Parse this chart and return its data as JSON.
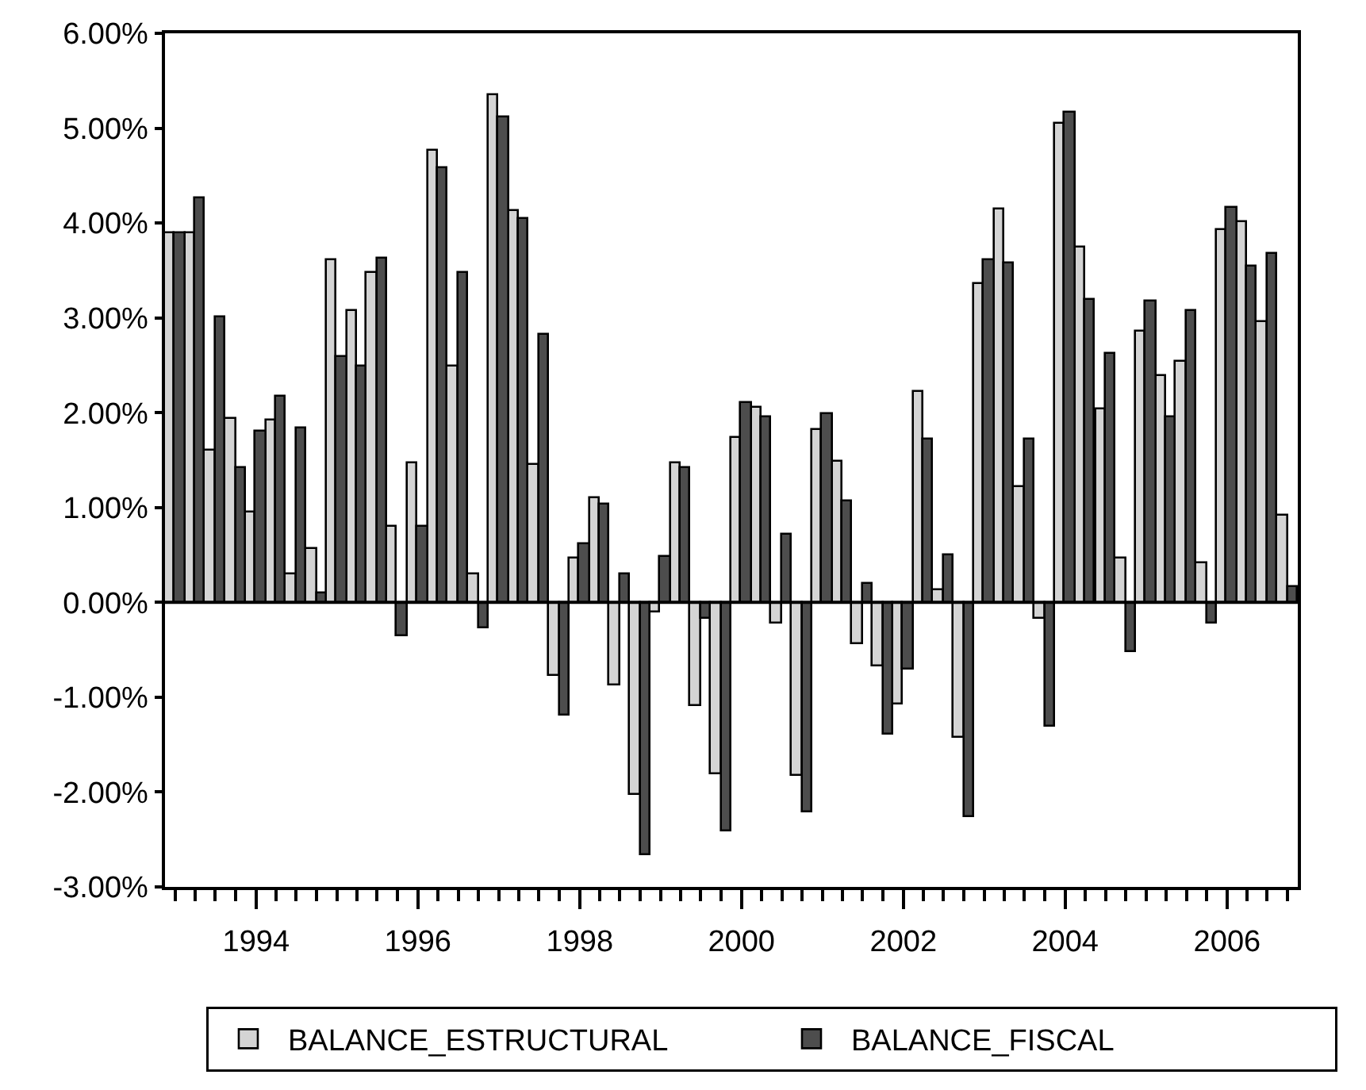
{
  "chart_data": {
    "type": "bar",
    "x": [
      "1993-01",
      "1993-04",
      "1993-07",
      "1993-10",
      "1994-01",
      "1994-04",
      "1994-07",
      "1994-10",
      "1995-01",
      "1995-04",
      "1995-07",
      "1995-10",
      "1996-01",
      "1996-04",
      "1996-07",
      "1996-10",
      "1997-01",
      "1997-04",
      "1997-07",
      "1997-10",
      "1998-01",
      "1998-04",
      "1998-07",
      "1998-10",
      "1999-01",
      "1999-04",
      "1999-07",
      "1999-10",
      "2000-01",
      "2000-04",
      "2000-07",
      "2000-10",
      "2001-01",
      "2001-04",
      "2001-07",
      "2001-10",
      "2002-01",
      "2002-04",
      "2002-07",
      "2002-10",
      "2003-01",
      "2003-04",
      "2003-07",
      "2003-10",
      "2004-01",
      "2004-04",
      "2004-07",
      "2004-10",
      "2005-01",
      "2005-04",
      "2005-07",
      "2005-10",
      "2006-01",
      "2006-04",
      "2006-07",
      "2006-10"
    ],
    "series": [
      {
        "name": "BALANCE_ESTRUCTURAL",
        "color": "#d4d4d4",
        "values": [
          3.9,
          3.9,
          1.6,
          1.94,
          0.94,
          1.92,
          0.3,
          0.56,
          3.6,
          3.08,
          3.47,
          0.79,
          1.47,
          4.76,
          2.48,
          0.29,
          5.35,
          4.12,
          1.45,
          -0.78,
          0.46,
          1.1,
          -0.88,
          -2.03,
          -0.11,
          1.47,
          -1.09,
          -1.81,
          1.74,
          2.05,
          -0.22,
          -1.83,
          1.81,
          1.49,
          -0.44,
          -0.68,
          -1.07,
          2.22,
          0.12,
          -1.42,
          3.35,
          4.15,
          1.22,
          -0.18,
          5.05,
          3.74,
          2.04,
          0.47,
          2.85,
          2.38,
          2.53,
          0.42,
          3.92,
          4.01,
          2.95,
          0.92
        ]
      },
      {
        "name": "BALANCE_FISCAL",
        "color": "#4d4d4d",
        "values": [
          3.9,
          4.26,
          3.01,
          1.42,
          1.8,
          2.17,
          1.83,
          0.1,
          2.58,
          2.49,
          3.62,
          -0.36,
          0.79,
          4.57,
          3.47,
          -0.27,
          5.11,
          4.05,
          2.82,
          -1.2,
          0.62,
          1.04,
          0.3,
          -2.66,
          0.48,
          1.42,
          -0.18,
          -2.42,
          2.1,
          1.96,
          0.72,
          -2.22,
          1.99,
          1.06,
          0.2,
          -1.4,
          -0.71,
          1.72,
          0.49,
          -2.27,
          3.6,
          3.58,
          1.72,
          -1.31,
          5.17,
          3.19,
          2.62,
          -0.52,
          3.17,
          1.96,
          3.08,
          -0.23,
          4.16,
          3.54,
          3.67,
          0.16
        ]
      }
    ],
    "xlim": [
      "1992-11-16",
      "2006-11-16"
    ],
    "ref_lines": [
      {
        "axis": "y",
        "value": 0,
        "color": "#000000"
      }
    ],
    "xticks": [
      {
        "value": "1994",
        "label": "1994"
      },
      {
        "value": "1996",
        "label": "1996"
      },
      {
        "value": "1998",
        "label": "1998"
      },
      {
        "value": "2000",
        "label": "2000"
      },
      {
        "value": "2002",
        "label": "2002"
      },
      {
        "value": "2004",
        "label": "2004"
      },
      {
        "value": "2006",
        "label": "2006"
      }
    ],
    "ylim": [
      -3,
      6
    ],
    "yticks": [
      {
        "value": -3,
        "label": "-3.00%"
      },
      {
        "value": -2,
        "label": "-2.00%"
      },
      {
        "value": -1,
        "label": "-1.00%"
      },
      {
        "value": 0,
        "label": "0.00%"
      },
      {
        "value": 1,
        "label": "1.00%"
      },
      {
        "value": 2,
        "label": "2.00%"
      },
      {
        "value": 3,
        "label": "3.00%"
      },
      {
        "value": 4,
        "label": "4.00%"
      },
      {
        "value": 5,
        "label": "5.00%"
      },
      {
        "value": 6,
        "label": "6.00%"
      }
    ],
    "legend": "bottom"
  }
}
